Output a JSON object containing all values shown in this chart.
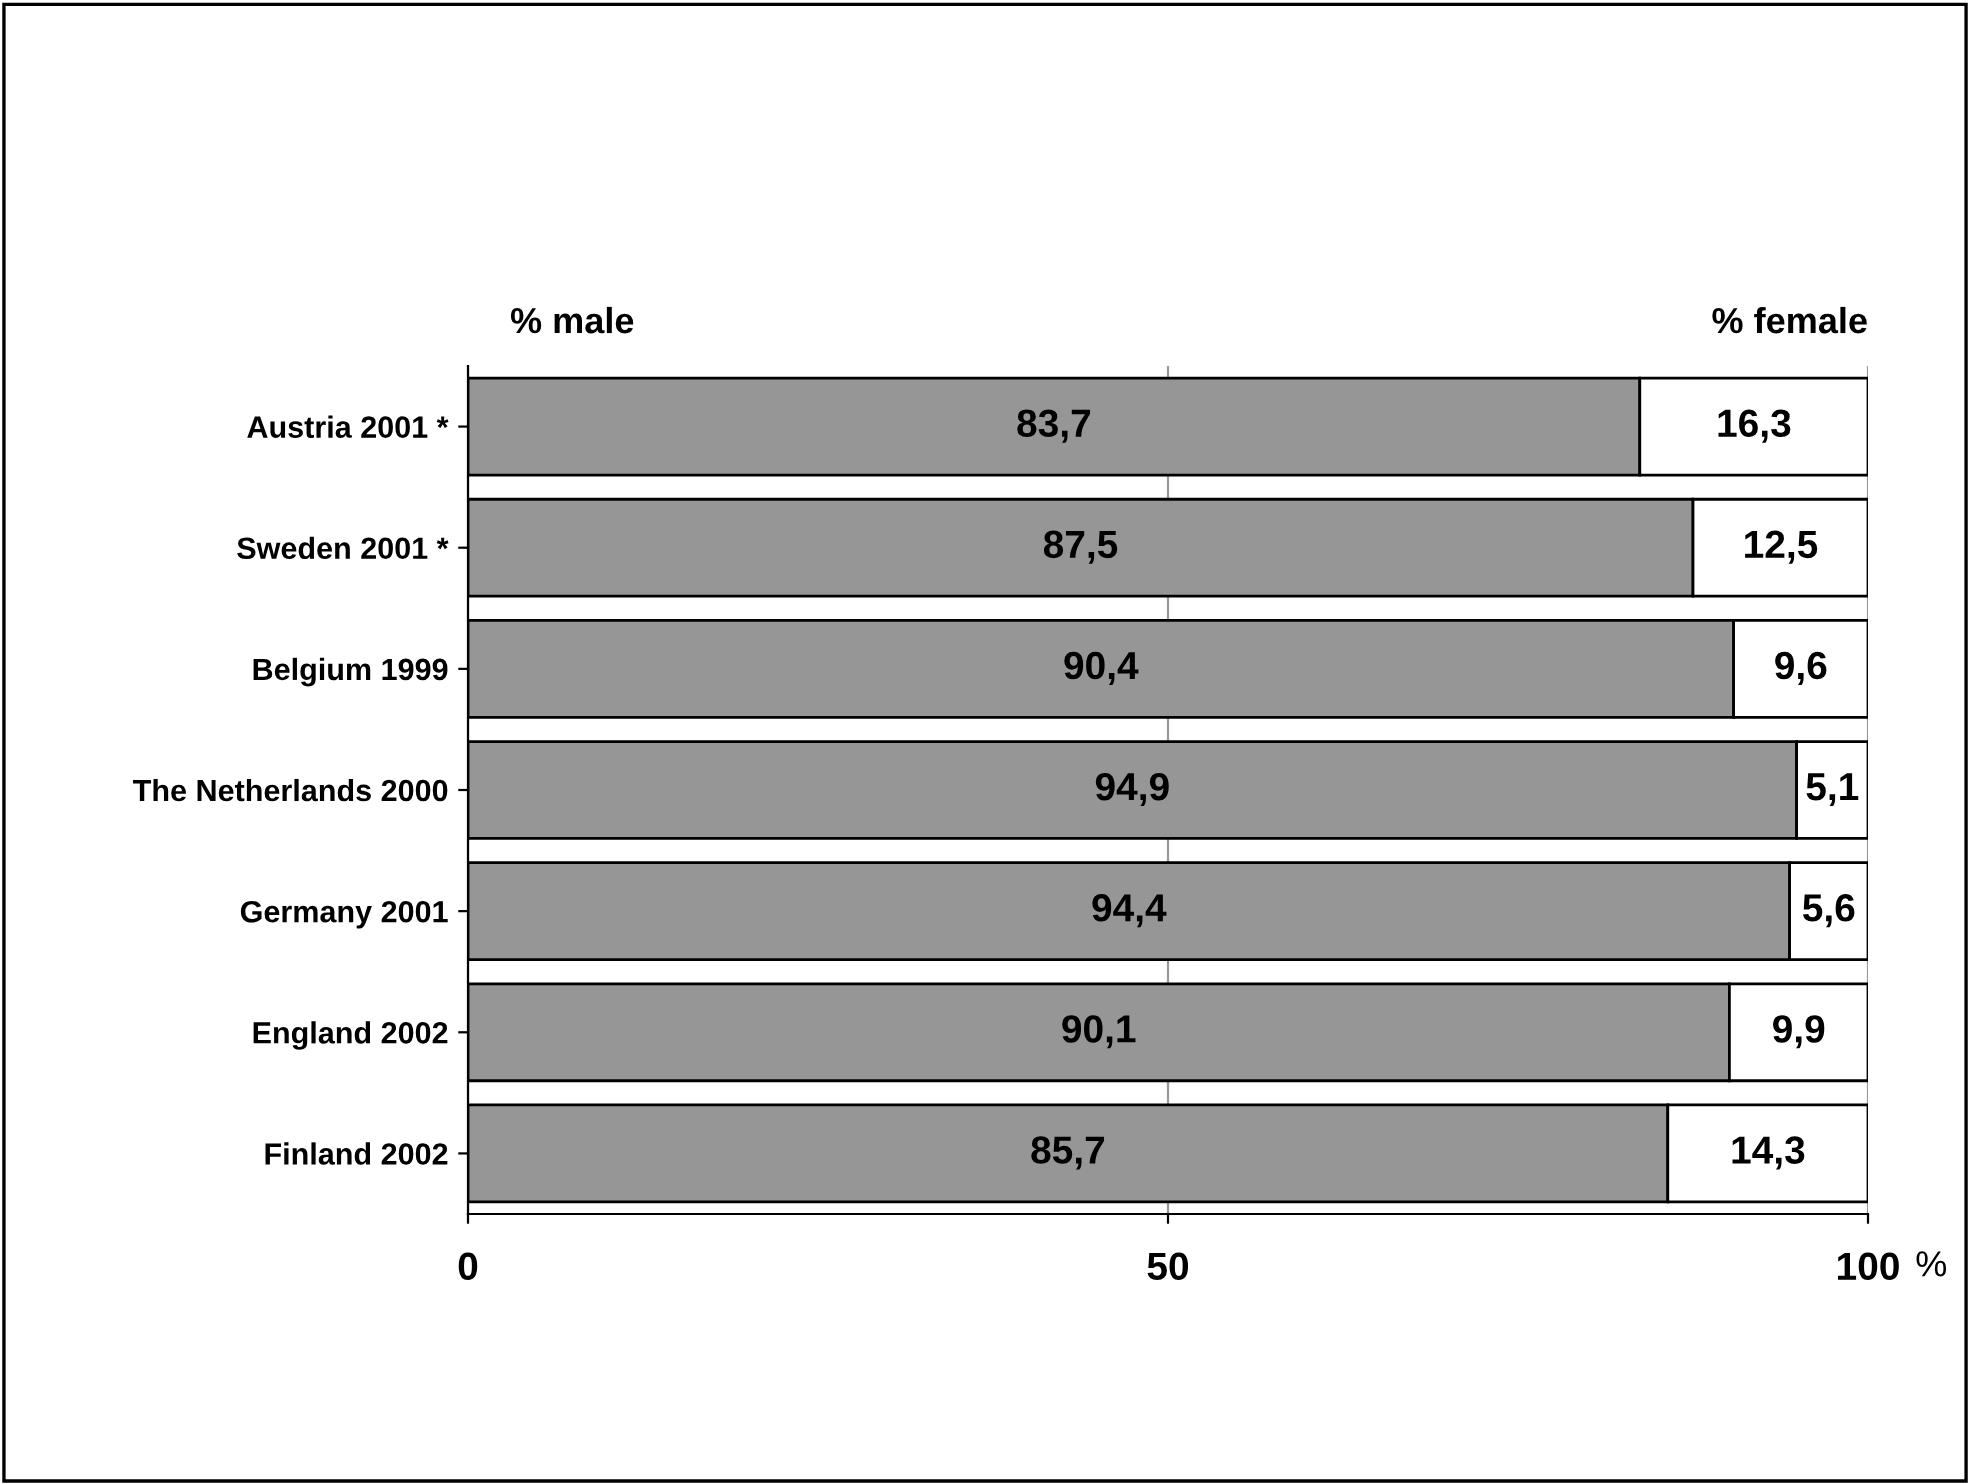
{
  "chart_data": {
    "type": "bar",
    "orientation": "horizontal",
    "stacked": true,
    "grid": "x",
    "xlabel": "%",
    "categories": [
      "Austria 2001 *",
      "Sweden 2001 *",
      "Belgium 1999",
      "The Netherlands 2000",
      "Germany 2001",
      "England 2002",
      "Finland 2002"
    ],
    "series": [
      {
        "name": "% male",
        "color": "#969696",
        "values": [
          83.7,
          87.5,
          90.4,
          94.9,
          94.4,
          90.1,
          85.7
        ],
        "value_labels": [
          "83,7",
          "87,5",
          "90,4",
          "94,9",
          "94,4",
          "90,1",
          "85,7"
        ]
      },
      {
        "name": "% female",
        "color": "#ffffff",
        "values": [
          16.3,
          12.5,
          9.6,
          5.1,
          5.6,
          9.9,
          14.3
        ],
        "value_labels": [
          "16,3",
          "12,5",
          "9,6",
          "5,1",
          "5,6",
          "9,9",
          "14,3"
        ]
      }
    ],
    "xlim": [
      0,
      100
    ],
    "xticks": [
      0,
      50,
      100
    ]
  }
}
